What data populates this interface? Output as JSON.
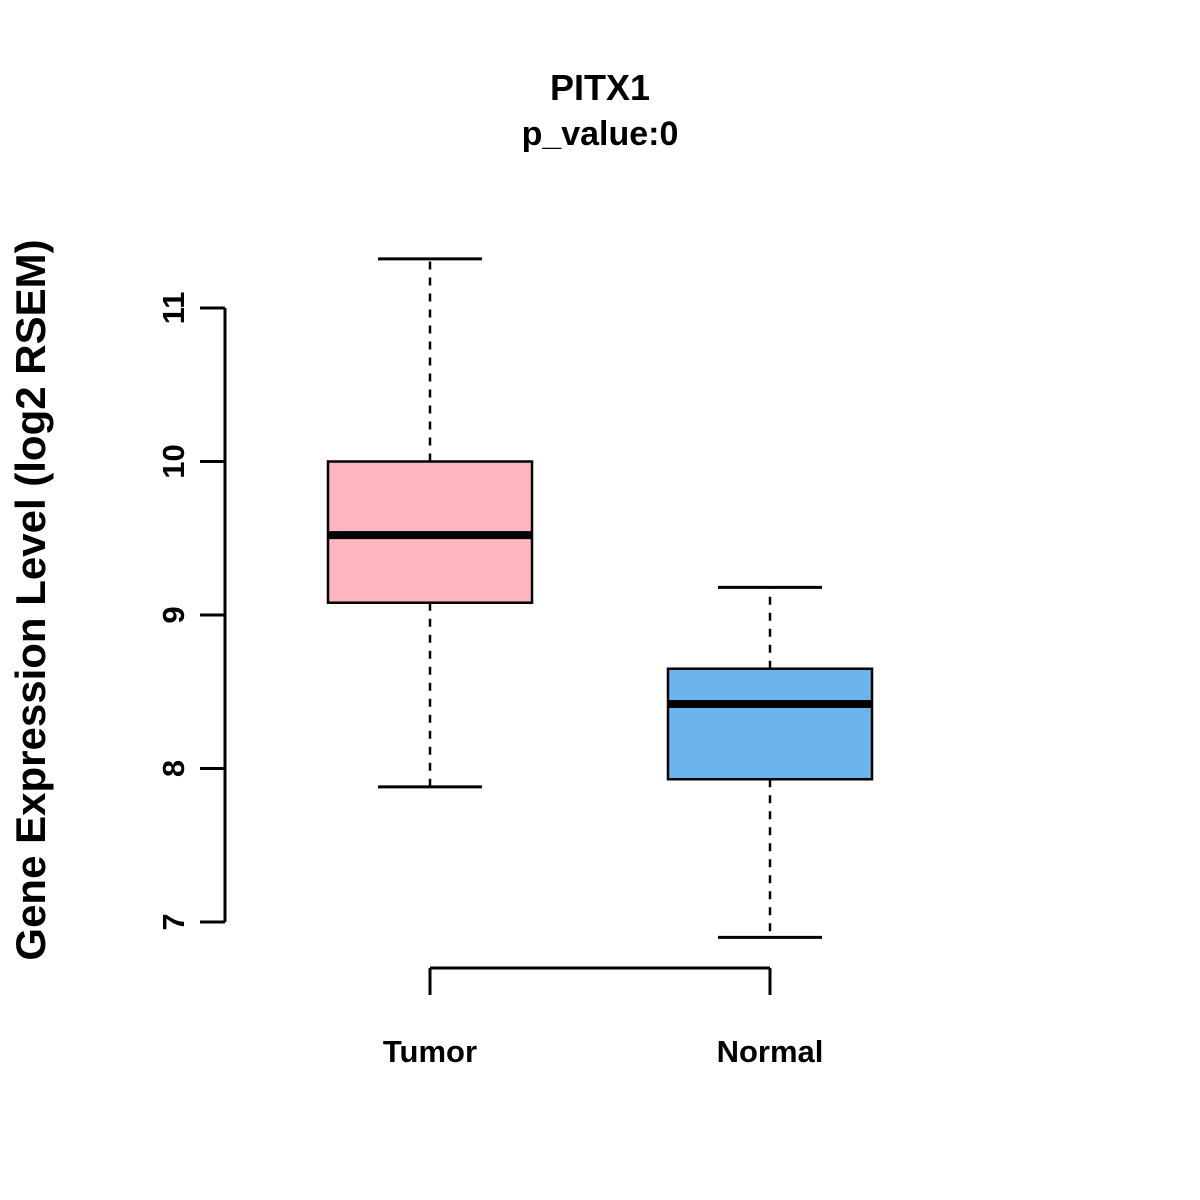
{
  "title": "PITX1",
  "subtitle": "p_value:0",
  "ylabel": "Gene Expression Level (log2 RSEM)",
  "colors": {
    "tumor_fill": "#FFB6C1",
    "normal_fill": "#6CB4EE",
    "stroke": "#000000",
    "background": "#FFFFFF"
  },
  "chart_data": {
    "type": "boxplot",
    "title": "PITX1",
    "subtitle": "p_value:0",
    "xlabel": "",
    "ylabel": "Gene Expression Level (log2 RSEM)",
    "categories": [
      "Tumor",
      "Normal"
    ],
    "y_ticks": [
      7,
      8,
      9,
      10,
      11
    ],
    "ylim": [
      6.6,
      11.5
    ],
    "grid": false,
    "legend": "none",
    "series": [
      {
        "name": "Tumor",
        "color": "#FFB6C1",
        "whisker_low": 7.88,
        "q1": 9.08,
        "median": 9.52,
        "q3": 10.0,
        "whisker_high": 11.32
      },
      {
        "name": "Normal",
        "color": "#6CB4EE",
        "whisker_low": 6.9,
        "q1": 7.93,
        "median": 8.42,
        "q3": 8.65,
        "whisker_high": 9.18
      }
    ]
  }
}
